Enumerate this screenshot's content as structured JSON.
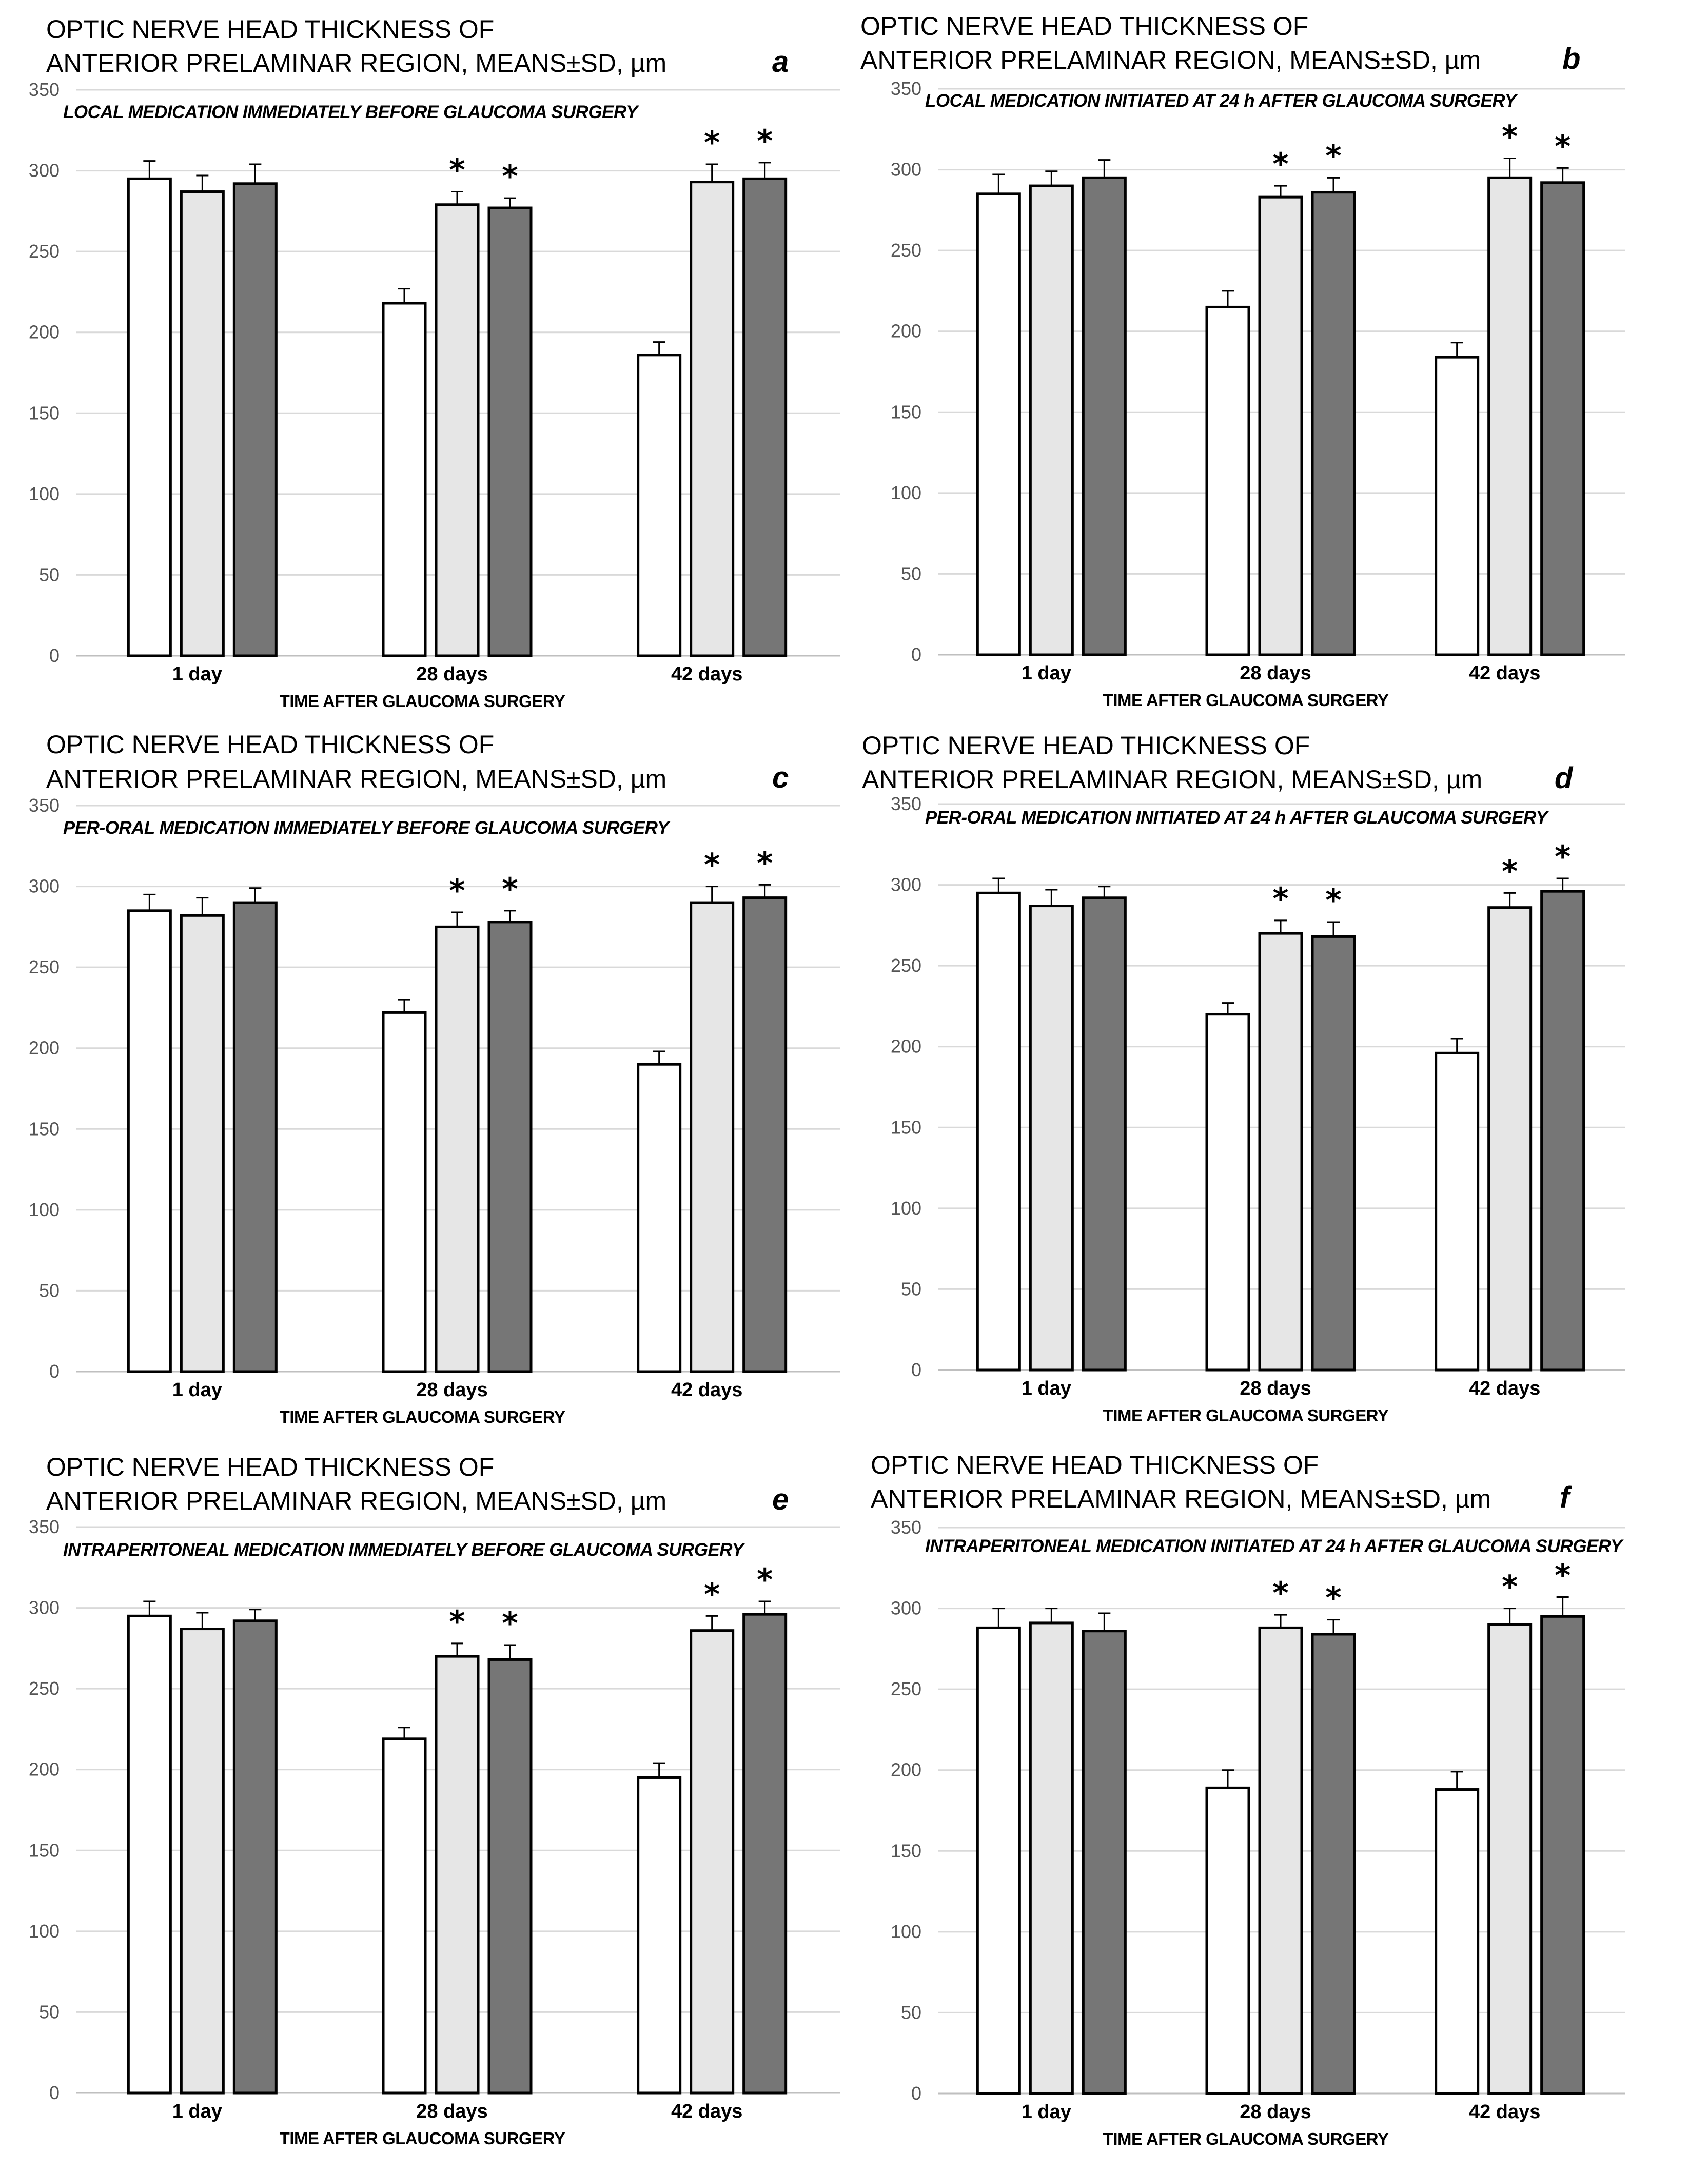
{
  "colors": {
    "group1": "#ffffff",
    "group2": "#e6e6e6",
    "group3": "#767676",
    "grid": "#d9d9d9"
  },
  "chart_data": [
    {
      "type": "bar",
      "letter": "a",
      "title_line1": "OPTIC NERVE HEAD THICKNESS OF",
      "title_line2": "ANTERIOR PRELAMINAR REGION, MEANS±SD, µm",
      "subtitle": "LOCAL MEDICATION IMMEDIATELY BEFORE GLAUCOMA SURGERY",
      "xlabel": "TIME AFTER GLAUCOMA SURGERY",
      "categories": [
        "1 day",
        "28 days",
        "42 days"
      ],
      "ylim": [
        0,
        350
      ],
      "yticks": [
        0,
        50,
        100,
        150,
        200,
        250,
        300,
        350
      ],
      "series": [
        {
          "values": [
            295,
            218,
            186
          ],
          "errors": [
            11,
            9,
            8
          ],
          "stars": [
            false,
            false,
            false
          ]
        },
        {
          "values": [
            287,
            279,
            293
          ],
          "errors": [
            10,
            8,
            11
          ],
          "stars": [
            false,
            true,
            true
          ]
        },
        {
          "values": [
            292,
            277,
            295
          ],
          "errors": [
            12,
            6,
            10
          ],
          "stars": [
            false,
            true,
            true
          ]
        }
      ]
    },
    {
      "type": "bar",
      "letter": "b",
      "title_line1": "OPTIC NERVE HEAD THICKNESS OF",
      "title_line2": "ANTERIOR PRELAMINAR REGION, MEANS±SD, µm",
      "subtitle": "LOCAL MEDICATION INITIATED AT 24 h AFTER GLAUCOMA SURGERY",
      "xlabel": "TIME AFTER GLAUCOMA SURGERY",
      "categories": [
        "1 day",
        "28 days",
        "42 days"
      ],
      "ylim": [
        0,
        350
      ],
      "yticks": [
        0,
        50,
        100,
        150,
        200,
        250,
        300,
        350
      ],
      "series": [
        {
          "values": [
            285,
            215,
            184
          ],
          "errors": [
            12,
            10,
            9
          ],
          "stars": [
            false,
            false,
            false
          ]
        },
        {
          "values": [
            290,
            283,
            295
          ],
          "errors": [
            9,
            7,
            12
          ],
          "stars": [
            false,
            true,
            true
          ]
        },
        {
          "values": [
            295,
            286,
            292
          ],
          "errors": [
            11,
            9,
            9
          ],
          "stars": [
            false,
            true,
            true
          ]
        }
      ]
    },
    {
      "type": "bar",
      "letter": "c",
      "title_line1": "OPTIC NERVE HEAD THICKNESS OF",
      "title_line2": "ANTERIOR PRELAMINAR REGION, MEANS±SD, µm",
      "subtitle": "PER-ORAL MEDICATION IMMEDIATELY BEFORE GLAUCOMA SURGERY",
      "xlabel": "TIME AFTER GLAUCOMA SURGERY",
      "categories": [
        "1 day",
        "28 days",
        "42 days"
      ],
      "ylim": [
        0,
        350
      ],
      "yticks": [
        0,
        50,
        100,
        150,
        200,
        250,
        300,
        350
      ],
      "series": [
        {
          "values": [
            285,
            222,
            190
          ],
          "errors": [
            10,
            8,
            8
          ],
          "stars": [
            false,
            false,
            false
          ]
        },
        {
          "values": [
            282,
            275,
            290
          ],
          "errors": [
            11,
            9,
            10
          ],
          "stars": [
            false,
            true,
            true
          ]
        },
        {
          "values": [
            290,
            278,
            293
          ],
          "errors": [
            9,
            7,
            8
          ],
          "stars": [
            false,
            true,
            true
          ]
        }
      ]
    },
    {
      "type": "bar",
      "letter": "d",
      "title_line1": "OPTIC NERVE HEAD THICKNESS OF",
      "title_line2": "ANTERIOR PRELAMINAR REGION, MEANS±SD, µm",
      "subtitle": "PER-ORAL MEDICATION INITIATED AT 24 h AFTER GLAUCOMA SURGERY",
      "xlabel": "TIME AFTER GLAUCOMA SURGERY",
      "categories": [
        "1 day",
        "28 days",
        "42 days"
      ],
      "ylim": [
        0,
        350
      ],
      "yticks": [
        0,
        50,
        100,
        150,
        200,
        250,
        300,
        350
      ],
      "series": [
        {
          "values": [
            295,
            220,
            196
          ],
          "errors": [
            9,
            7,
            9
          ],
          "stars": [
            false,
            false,
            false
          ]
        },
        {
          "values": [
            287,
            270,
            286
          ],
          "errors": [
            10,
            8,
            9
          ],
          "stars": [
            false,
            true,
            true
          ]
        },
        {
          "values": [
            292,
            268,
            296
          ],
          "errors": [
            7,
            9,
            8
          ],
          "stars": [
            false,
            true,
            true
          ]
        }
      ]
    },
    {
      "type": "bar",
      "letter": "e",
      "title_line1": "OPTIC NERVE HEAD THICKNESS OF",
      "title_line2": "ANTERIOR PRELAMINAR REGION, MEANS±SD, µm",
      "subtitle": "INTRAPERITONEAL MEDICATION IMMEDIATELY BEFORE GLAUCOMA SURGERY",
      "xlabel": "TIME AFTER GLAUCOMA SURGERY",
      "categories": [
        "1 day",
        "28 days",
        "42 days"
      ],
      "ylim": [
        0,
        350
      ],
      "yticks": [
        0,
        50,
        100,
        150,
        200,
        250,
        300,
        350
      ],
      "series": [
        {
          "values": [
            295,
            219,
            195
          ],
          "errors": [
            9,
            7,
            9
          ],
          "stars": [
            false,
            false,
            false
          ]
        },
        {
          "values": [
            287,
            270,
            286
          ],
          "errors": [
            10,
            8,
            9
          ],
          "stars": [
            false,
            true,
            true
          ]
        },
        {
          "values": [
            292,
            268,
            296
          ],
          "errors": [
            7,
            9,
            8
          ],
          "stars": [
            false,
            true,
            true
          ]
        }
      ]
    },
    {
      "type": "bar",
      "letter": "f",
      "title_line1": "OPTIC NERVE HEAD THICKNESS OF",
      "title_line2": "ANTERIOR PRELAMINAR REGION, MEANS±SD, µm",
      "subtitle": "INTRAPERITONEAL MEDICATION INITIATED AT 24 h AFTER GLAUCOMA SURGERY",
      "xlabel": "TIME AFTER GLAUCOMA SURGERY",
      "categories": [
        "1 day",
        "28 days",
        "42 days"
      ],
      "ylim": [
        0,
        350
      ],
      "yticks": [
        0,
        50,
        100,
        150,
        200,
        250,
        300,
        350
      ],
      "series": [
        {
          "values": [
            288,
            189,
            188
          ],
          "errors": [
            12,
            11,
            11
          ],
          "stars": [
            false,
            false,
            false
          ]
        },
        {
          "values": [
            291,
            288,
            290
          ],
          "errors": [
            9,
            8,
            10
          ],
          "stars": [
            false,
            true,
            true
          ]
        },
        {
          "values": [
            286,
            284,
            295
          ],
          "errors": [
            11,
            9,
            12
          ],
          "stars": [
            false,
            true,
            true
          ]
        }
      ]
    }
  ]
}
